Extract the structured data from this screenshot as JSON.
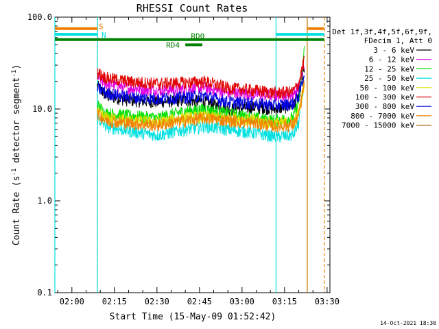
{
  "chart_data": {
    "type": "line",
    "title": "RHESSI Count Rates",
    "xlabel": "Start Time (15-May-09 01:52:42)",
    "ylabel": "Count Rate (s⁻¹ detector segment⁻¹)",
    "ylabel_base": "Count Rate (s",
    "ylabel_mid": " detector segment",
    "ylabel_end": ")",
    "ylabel_exp": "-1",
    "yscale": "log",
    "ylim": [
      0.1,
      100.0
    ],
    "xlim": [
      "01:54",
      "03:31"
    ],
    "x_ticks": [
      "02:00",
      "02:15",
      "02:30",
      "02:45",
      "03:00",
      "03:15",
      "03:30"
    ],
    "y_ticks": [
      "0.1",
      "1.0",
      "10.0",
      "100.0"
    ],
    "legend_header": [
      "Det 1f,3f,4f,5f,6f,9f,",
      "FDecim 1, Att 0"
    ],
    "series": [
      {
        "name": "3 - 6 keV",
        "color": "#000000",
        "points": [
          [
            "02:09",
            18
          ],
          [
            "02:12",
            14
          ],
          [
            "02:20",
            12.5
          ],
          [
            "02:30",
            12
          ],
          [
            "02:40",
            12.5
          ],
          [
            "02:47",
            12
          ],
          [
            "02:55",
            10
          ],
          [
            "03:05",
            10.5
          ],
          [
            "03:12",
            10
          ],
          [
            "03:18",
            11
          ],
          [
            "03:20",
            14
          ],
          [
            "03:22",
            28
          ]
        ]
      },
      {
        "name": "6 - 12 keV",
        "color": "#e000e0",
        "points": [
          [
            "02:09",
            22
          ],
          [
            "02:12",
            19
          ],
          [
            "02:20",
            17
          ],
          [
            "02:30",
            16
          ],
          [
            "02:40",
            16.5
          ],
          [
            "02:47",
            17
          ],
          [
            "02:55",
            15
          ],
          [
            "03:05",
            14.5
          ],
          [
            "03:12",
            14
          ],
          [
            "03:18",
            14.5
          ],
          [
            "03:20",
            17
          ],
          [
            "03:22",
            30
          ]
        ]
      },
      {
        "name": "12 - 25 keV",
        "color": "#00e000",
        "points": [
          [
            "02:09",
            11
          ],
          [
            "02:12",
            9
          ],
          [
            "02:20",
            8.5
          ],
          [
            "02:30",
            8
          ],
          [
            "02:40",
            9.5
          ],
          [
            "02:47",
            10
          ],
          [
            "02:55",
            9
          ],
          [
            "03:05",
            8
          ],
          [
            "03:12",
            7.5
          ],
          [
            "03:18",
            8
          ],
          [
            "03:20",
            12
          ],
          [
            "03:22",
            45
          ]
        ]
      },
      {
        "name": "25 - 50 keV",
        "color": "#00e0e0",
        "points": [
          [
            "02:09",
            8
          ],
          [
            "02:12",
            6.5
          ],
          [
            "02:20",
            5.8
          ],
          [
            "02:30",
            5.2
          ],
          [
            "02:40",
            6
          ],
          [
            "02:47",
            6.5
          ],
          [
            "02:55",
            6
          ],
          [
            "03:05",
            5.5
          ],
          [
            "03:12",
            5
          ],
          [
            "03:18",
            5.2
          ],
          [
            "03:20",
            7
          ],
          [
            "03:22",
            22
          ]
        ]
      },
      {
        "name": "50 - 100 keV",
        "color": "#e0e000",
        "points": [
          [
            "02:09",
            9
          ],
          [
            "02:12",
            8
          ],
          [
            "02:20",
            7.5
          ],
          [
            "02:30",
            7.2
          ],
          [
            "02:40",
            8
          ],
          [
            "02:47",
            8.3
          ],
          [
            "02:55",
            8
          ],
          [
            "03:05",
            7.5
          ],
          [
            "03:12",
            7
          ],
          [
            "03:18",
            7.2
          ],
          [
            "03:20",
            9
          ],
          [
            "03:22",
            20
          ]
        ]
      },
      {
        "name": "100 - 300 keV",
        "color": "#e00000",
        "points": [
          [
            "02:09",
            25
          ],
          [
            "02:12",
            22
          ],
          [
            "02:20",
            20
          ],
          [
            "02:30",
            19
          ],
          [
            "02:40",
            19.5
          ],
          [
            "02:47",
            20
          ],
          [
            "02:55",
            17
          ],
          [
            "03:05",
            16
          ],
          [
            "03:12",
            15
          ],
          [
            "03:18",
            15.5
          ],
          [
            "03:20",
            19
          ],
          [
            "03:22",
            35
          ]
        ]
      },
      {
        "name": "300 - 800 keV",
        "color": "#0000e0",
        "points": [
          [
            "02:09",
            17
          ],
          [
            "02:12",
            15
          ],
          [
            "02:20",
            13.5
          ],
          [
            "02:30",
            13
          ],
          [
            "02:40",
            13.5
          ],
          [
            "02:47",
            14
          ],
          [
            "02:55",
            12
          ],
          [
            "03:05",
            11.5
          ],
          [
            "03:12",
            11
          ],
          [
            "03:18",
            11.5
          ],
          [
            "03:20",
            14
          ],
          [
            "03:22",
            25
          ]
        ]
      },
      {
        "name": "800 - 7000 keV",
        "color": "#f08000",
        "points": [
          [
            "02:09",
            9
          ],
          [
            "02:12",
            7.5
          ],
          [
            "02:20",
            7
          ],
          [
            "02:30",
            6.7
          ],
          [
            "02:40",
            7.5
          ],
          [
            "02:47",
            8
          ],
          [
            "02:55",
            7.5
          ],
          [
            "03:05",
            7
          ],
          [
            "03:12",
            6.5
          ],
          [
            "03:18",
            6.7
          ],
          [
            "03:20",
            8.5
          ],
          [
            "03:22",
            19
          ]
        ]
      },
      {
        "name": "7000 - 15000 keV",
        "color": "#b06000",
        "points": []
      }
    ],
    "flags": [
      {
        "label": "S",
        "color": "#f08000",
        "y": 75,
        "segments": [
          [
            "01:54",
            "02:09"
          ],
          [
            "03:23",
            "03:29"
          ]
        ]
      },
      {
        "label": "N",
        "color": "#00e0e0",
        "y": 65,
        "segments": [
          [
            "01:54",
            "02:09"
          ],
          [
            "03:12",
            "03:29"
          ]
        ]
      },
      {
        "label": "RD0",
        "color": "#008000",
        "y": 57,
        "segments": [
          [
            "01:54",
            "03:29"
          ]
        ]
      },
      {
        "label": "RD4",
        "color": "#008000",
        "y": 50,
        "segments": [
          [
            "02:40",
            "02:46"
          ]
        ]
      }
    ],
    "vertical_lines": [
      {
        "time": "01:54",
        "color": "#00e0e0",
        "style": "solid"
      },
      {
        "time": "02:09",
        "color": "#f08000",
        "style": "dashed"
      },
      {
        "time": "02:09",
        "color": "#00e0e0",
        "style": "solid"
      },
      {
        "time": "03:12",
        "color": "#00e0e0",
        "style": "solid"
      },
      {
        "time": "03:23",
        "color": "#c07000",
        "style": "solid"
      },
      {
        "time": "03:29",
        "color": "#f08000",
        "style": "dashed"
      }
    ]
  },
  "footer_date": "14-Oct-2021 18:30"
}
